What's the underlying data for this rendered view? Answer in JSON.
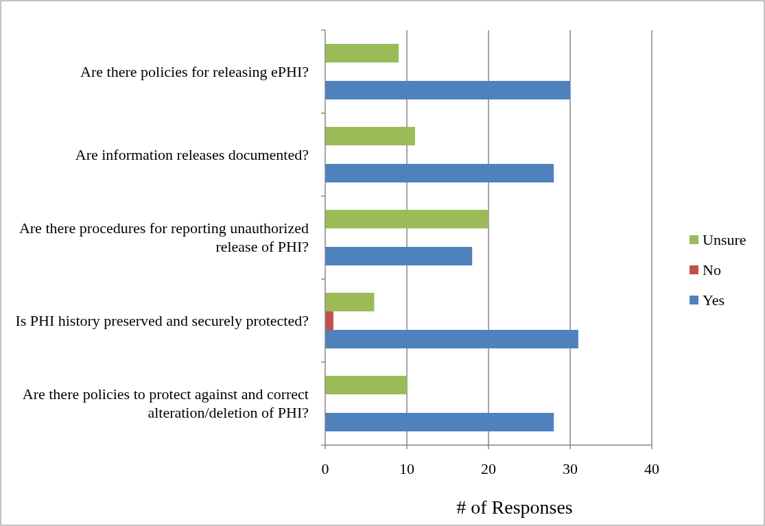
{
  "chart_data": {
    "type": "bar",
    "orientation": "horizontal",
    "xlabel": "# of Responses",
    "categories": [
      "Are there policies for releasing ePHI?",
      "Are information releases documented?",
      "Are there procedures for reporting unauthorized release of PHI?",
      "Is PHI history preserved and securely protected?",
      "Are there policies to protect against and correct alteration/deletion of PHI?"
    ],
    "series": [
      {
        "name": "Unsure",
        "color": "#9bbb59",
        "values": [
          9,
          11,
          20,
          6,
          10
        ]
      },
      {
        "name": "No",
        "color": "#c0504d",
        "values": [
          0,
          0,
          0,
          1,
          0
        ]
      },
      {
        "name": "Yes",
        "color": "#4f81bd",
        "values": [
          30,
          28,
          18,
          31,
          28
        ]
      }
    ],
    "xlim": [
      0,
      40
    ],
    "xticks": [
      0,
      10,
      20,
      30,
      40
    ],
    "grid": "x",
    "legend": "right"
  }
}
